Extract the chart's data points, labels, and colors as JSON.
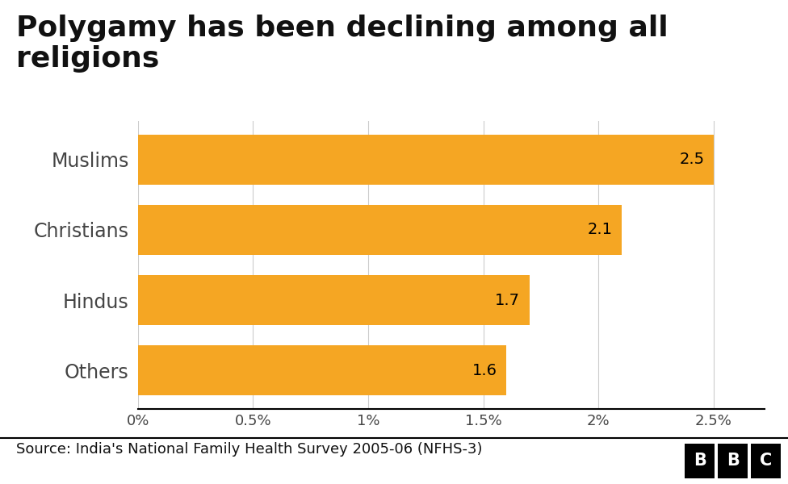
{
  "title": "Polygamy has been declining among all\nreligions",
  "categories": [
    "Muslims",
    "Christians",
    "Hindus",
    "Others"
  ],
  "values": [
    2.5,
    2.1,
    1.7,
    1.6
  ],
  "bar_color": "#F5A623",
  "background_color": "#FFFFFF",
  "label_color": "#444444",
  "value_label_color": "#000000",
  "source_text": "Source: India's National Family Health Survey 2005-06 (NFHS-3)",
  "xlim_max": 2.72,
  "xtick_vals": [
    0,
    0.5,
    1.0,
    1.5,
    2.0,
    2.5
  ],
  "xtick_labels": [
    "0%",
    "0.5%",
    "1%",
    "1.5%",
    "2%",
    "2.5%"
  ],
  "title_fontsize": 26,
  "axis_label_fontsize": 13,
  "bar_label_fontsize": 14,
  "category_fontsize": 17,
  "source_fontsize": 13,
  "grid_color": "#CCCCCC",
  "spine_color": "#000000",
  "footer_line_color": "#000000"
}
